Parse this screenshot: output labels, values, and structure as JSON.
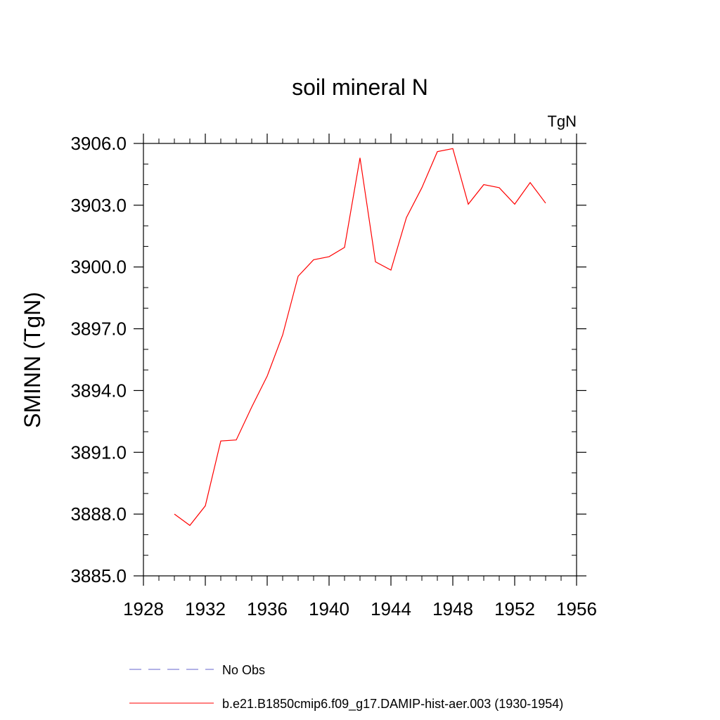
{
  "chart_data": {
    "type": "line",
    "title": "soil mineral N",
    "units_label": "TgN",
    "ylabel": "SMINN  (TgN)",
    "xlabel": "",
    "xlim": [
      1928,
      1956
    ],
    "ylim": [
      3885.0,
      3906.0
    ],
    "x_ticks": [
      1928,
      1932,
      1936,
      1940,
      1944,
      1948,
      1952,
      1956
    ],
    "x_tick_labels": [
      "1928",
      "1932",
      "1936",
      "1940",
      "1944",
      "1948",
      "1952",
      "1956"
    ],
    "y_ticks": [
      3885.0,
      3888.0,
      3891.0,
      3894.0,
      3897.0,
      3900.0,
      3903.0,
      3906.0
    ],
    "y_tick_labels": [
      "3885.0",
      "3888.0",
      "3891.0",
      "3894.0",
      "3897.0",
      "3900.0",
      "3903.0",
      "3906.0"
    ],
    "grid": false,
    "legend_position": "bottom",
    "series": [
      {
        "name": "b.e21.B1850cmip6.f09_g17.DAMIP-hist-aer.003 (1930-1954)",
        "color": "#ff0000",
        "dash": "solid",
        "x": [
          1930,
          1931,
          1932,
          1933,
          1934,
          1935,
          1936,
          1937,
          1938,
          1939,
          1940,
          1941,
          1942,
          1943,
          1944,
          1945,
          1946,
          1947,
          1948,
          1949,
          1950,
          1951,
          1952,
          1953,
          1954
        ],
        "y": [
          3888.0,
          3887.45,
          3888.4,
          3891.55,
          3891.6,
          3893.2,
          3894.7,
          3896.7,
          3899.55,
          3900.35,
          3900.5,
          3900.95,
          3905.3,
          3900.25,
          3899.85,
          3902.4,
          3903.85,
          3905.6,
          3905.75,
          3903.05,
          3904.0,
          3903.85,
          3903.05,
          3904.1,
          3903.1
        ]
      },
      {
        "name": "No Obs",
        "color": "#6666cc",
        "dash": "dashed",
        "x": [],
        "y": []
      }
    ]
  }
}
